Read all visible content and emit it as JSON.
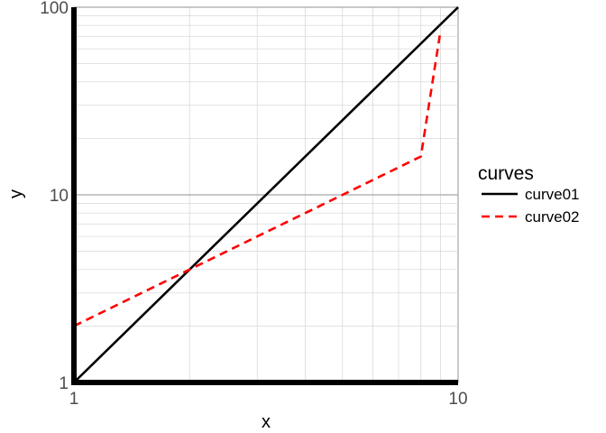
{
  "chart_data": {
    "type": "line",
    "xlabel": "x",
    "ylabel": "y",
    "x_scale": "log",
    "y_scale": "log",
    "xlim": [
      1,
      10
    ],
    "ylim": [
      1,
      100
    ],
    "x_ticks": [
      1,
      10
    ],
    "x_tick_labels": [
      "1",
      "10"
    ],
    "y_ticks": [
      1,
      10,
      100
    ],
    "y_tick_labels": [
      "1",
      "10",
      "100"
    ],
    "grid": true,
    "legend": {
      "title": "curves",
      "position": "right"
    },
    "series": [
      {
        "name": "curve01",
        "color": "#000000",
        "line_style": "solid",
        "x": [
          1,
          10
        ],
        "y": [
          1,
          100
        ]
      },
      {
        "name": "curve02",
        "color": "#ff0000",
        "line_style": "dashed",
        "x": [
          1,
          1.5,
          2,
          3,
          4,
          5,
          6,
          7,
          8,
          9
        ],
        "y": [
          2,
          3,
          4,
          6,
          8,
          10,
          12,
          14,
          16,
          75
        ]
      }
    ]
  }
}
